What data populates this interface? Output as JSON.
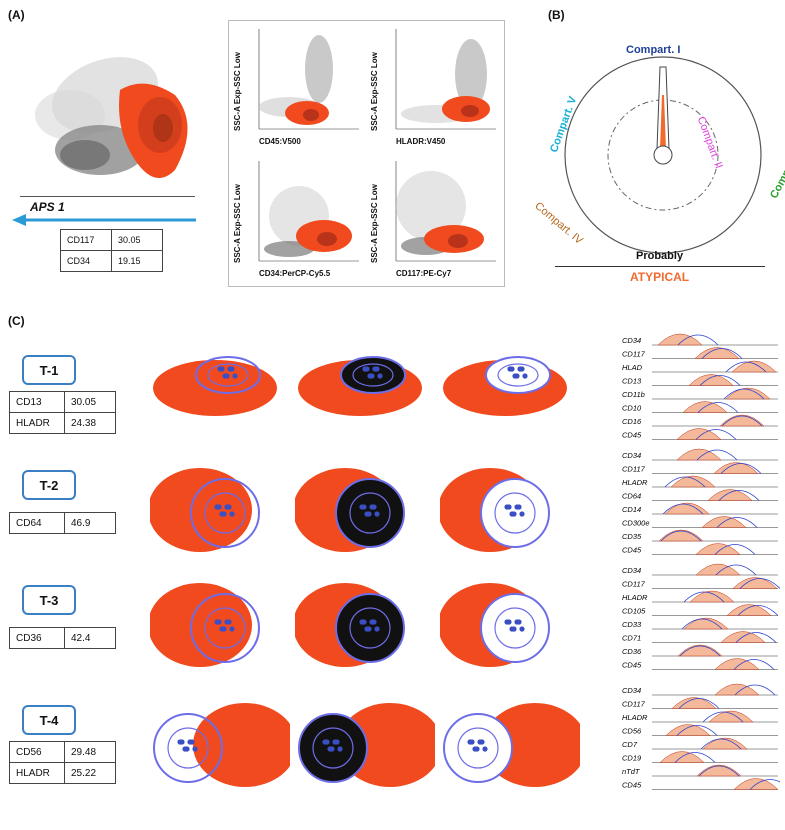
{
  "panels": {
    "a_label": "(A)",
    "b_label": "(B)",
    "c_label": "(C)"
  },
  "panel_a": {
    "aps_label": "APS 1",
    "marker_table": [
      {
        "marker": "CD117",
        "value": "30.05"
      },
      {
        "marker": "CD34",
        "value": "19.15"
      }
    ],
    "scatter_plots": [
      {
        "y_axis": "SSC-A Exp-SSC Low",
        "x_axis": "CD45:V500"
      },
      {
        "y_axis": "SSC-A Exp-SSC Low",
        "x_axis": "HLADR:V450"
      },
      {
        "y_axis": "SSC-A Exp-SSC Low",
        "x_axis": "CD34:PerCP-Cy5.5"
      },
      {
        "y_axis": "SSC-A Exp-SSC Low",
        "x_axis": "CD117:PE-Cy7"
      }
    ],
    "colors": {
      "population": "#f04a1e",
      "background": "#9a9a9a",
      "arrow": "#2b9ad6"
    }
  },
  "panel_b": {
    "compartments": [
      {
        "label": "Compart. I",
        "color": "#1f3f9a"
      },
      {
        "label": "Compart. II",
        "color": "#e040e0"
      },
      {
        "label": "Compart. III",
        "color": "#2ca02c"
      },
      {
        "label": "Compart. IV",
        "color": "#b5651d"
      },
      {
        "label": "Compart. V",
        "color": "#1ab0d8"
      }
    ],
    "probability_label": "Probably",
    "classification": "ATYPICAL",
    "classification_color": "#f26a2e"
  },
  "panel_c": {
    "tubes": [
      {
        "name": "T-1",
        "table": [
          {
            "marker": "CD13",
            "value": "30.05"
          },
          {
            "marker": "HLADR",
            "value": "24.38"
          }
        ],
        "hist_markers": [
          "CD34",
          "CD117",
          "HLAD",
          "CD13",
          "CD11b",
          "CD10",
          "CD16",
          "CD45"
        ]
      },
      {
        "name": "T-2",
        "table": [
          {
            "marker": "CD64",
            "value": "46.9"
          }
        ],
        "hist_markers": [
          "CD34",
          "CD117",
          "HLADR",
          "CD64",
          "CD14",
          "CD300e",
          "CD35",
          "CD45"
        ]
      },
      {
        "name": "T-3",
        "table": [
          {
            "marker": "CD36",
            "value": "42.4"
          }
        ],
        "hist_markers": [
          "CD34",
          "CD117",
          "HLADR",
          "CD105",
          "CD33",
          "CD71",
          "CD36",
          "CD45"
        ]
      },
      {
        "name": "T-4",
        "table": [
          {
            "marker": "CD56",
            "value": "29.48"
          },
          {
            "marker": "HLADR",
            "value": "25.22"
          }
        ],
        "hist_markers": [
          "CD34",
          "CD117",
          "HLADR",
          "CD56",
          "CD7",
          "CD19",
          "nTdT",
          "CD45"
        ]
      }
    ],
    "colors": {
      "population": "#f04a1e",
      "contour": "#6d6de8",
      "dots": "#3b4fc4",
      "hist_fill": "#f4b89a",
      "hist_line": "#2a3fd0"
    }
  }
}
